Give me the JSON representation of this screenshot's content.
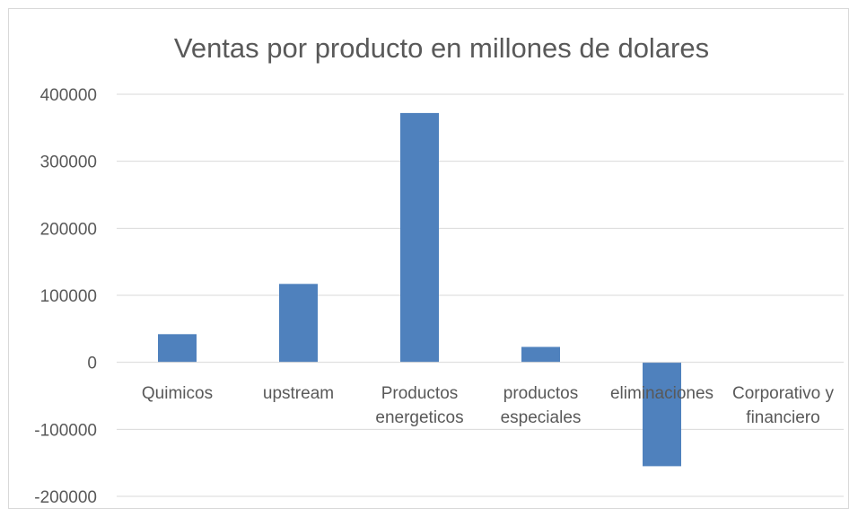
{
  "chart_data": {
    "type": "bar",
    "title": "Ventas por producto en millones de dolares",
    "xlabel": "",
    "ylabel": "",
    "categories": [
      "Quimicos",
      "upstream",
      "Productos energeticos",
      "productos especiales",
      "eliminaciones",
      "Corporativo y financiero"
    ],
    "category_label_lines": [
      [
        "Quimicos"
      ],
      [
        "upstream"
      ],
      [
        "Productos",
        "energeticos"
      ],
      [
        "productos",
        "especiales"
      ],
      [
        "eliminaciones"
      ],
      [
        "Corporativo y",
        "financiero"
      ]
    ],
    "values": [
      42000,
      117000,
      372000,
      23000,
      -155000,
      0
    ],
    "ylim": [
      -200000,
      400000
    ],
    "yticks": [
      400000,
      300000,
      200000,
      100000,
      0,
      -100000,
      -200000
    ],
    "ytick_labels": [
      "400000",
      "300000",
      "200000",
      "100000",
      "0",
      "-100000",
      "-200000"
    ],
    "grid": true,
    "legend": "none",
    "bar_color": "#4f81bd",
    "grid_color": "#d9d9d9",
    "text_color": "#595959"
  }
}
